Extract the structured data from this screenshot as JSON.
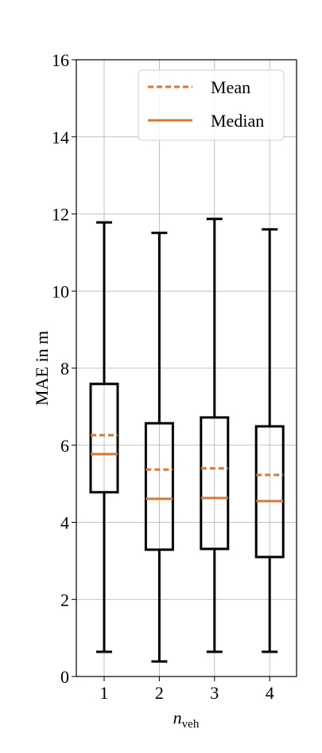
{
  "chart_data": {
    "type": "box",
    "categories": [
      "1",
      "2",
      "3",
      "4"
    ],
    "xlabel": {
      "base": "n",
      "sub": "veh"
    },
    "ylabel": "MAE in m",
    "ylim": [
      0,
      16
    ],
    "yticks": [
      0,
      2,
      4,
      6,
      8,
      10,
      12,
      14,
      16
    ],
    "grid": true,
    "box_color": "#000000",
    "mean_color": "#dd7633",
    "median_color": "#dd7633",
    "legend": {
      "loc": "upper right",
      "mean": "Mean",
      "median": "Median"
    },
    "boxes": [
      {
        "whisker_low": 0.64,
        "q1": 4.78,
        "median": 5.77,
        "mean": 6.26,
        "q3": 7.59,
        "whisker_high": 11.78
      },
      {
        "whisker_low": 0.39,
        "q1": 3.29,
        "median": 4.61,
        "mean": 5.37,
        "q3": 6.57,
        "whisker_high": 11.51
      },
      {
        "whisker_low": 0.64,
        "q1": 3.31,
        "median": 4.63,
        "mean": 5.4,
        "q3": 6.72,
        "whisker_high": 11.87
      },
      {
        "whisker_low": 0.64,
        "q1": 3.1,
        "median": 4.55,
        "mean": 5.23,
        "q3": 6.49,
        "whisker_high": 11.6
      }
    ]
  }
}
